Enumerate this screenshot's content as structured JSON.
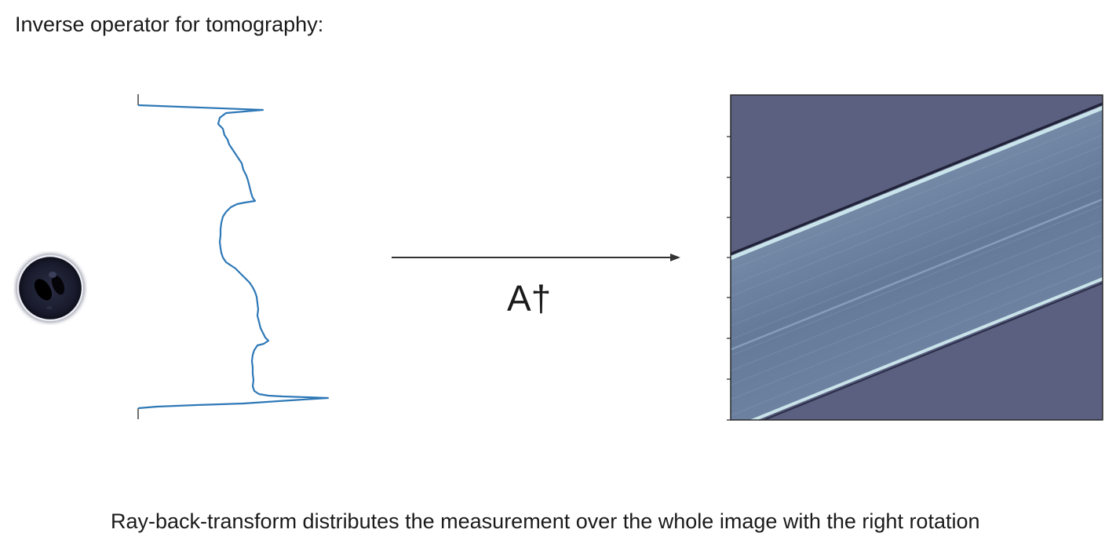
{
  "slide": {
    "title": "Inverse operator for tomography:",
    "operator": "A†",
    "caption": "Ray-back-transform distributes the measurement over the whole image with the right rotation"
  },
  "icons": {
    "phantom": "phantom-thumbnail-icon",
    "arrow": "right-arrow-icon"
  },
  "colors": {
    "profile_line": "#2e78b7",
    "image_background": "#5b5f80",
    "band": "#66789a",
    "edge_highlight": "#c9e3ea",
    "text": "#1a1a1a"
  }
}
